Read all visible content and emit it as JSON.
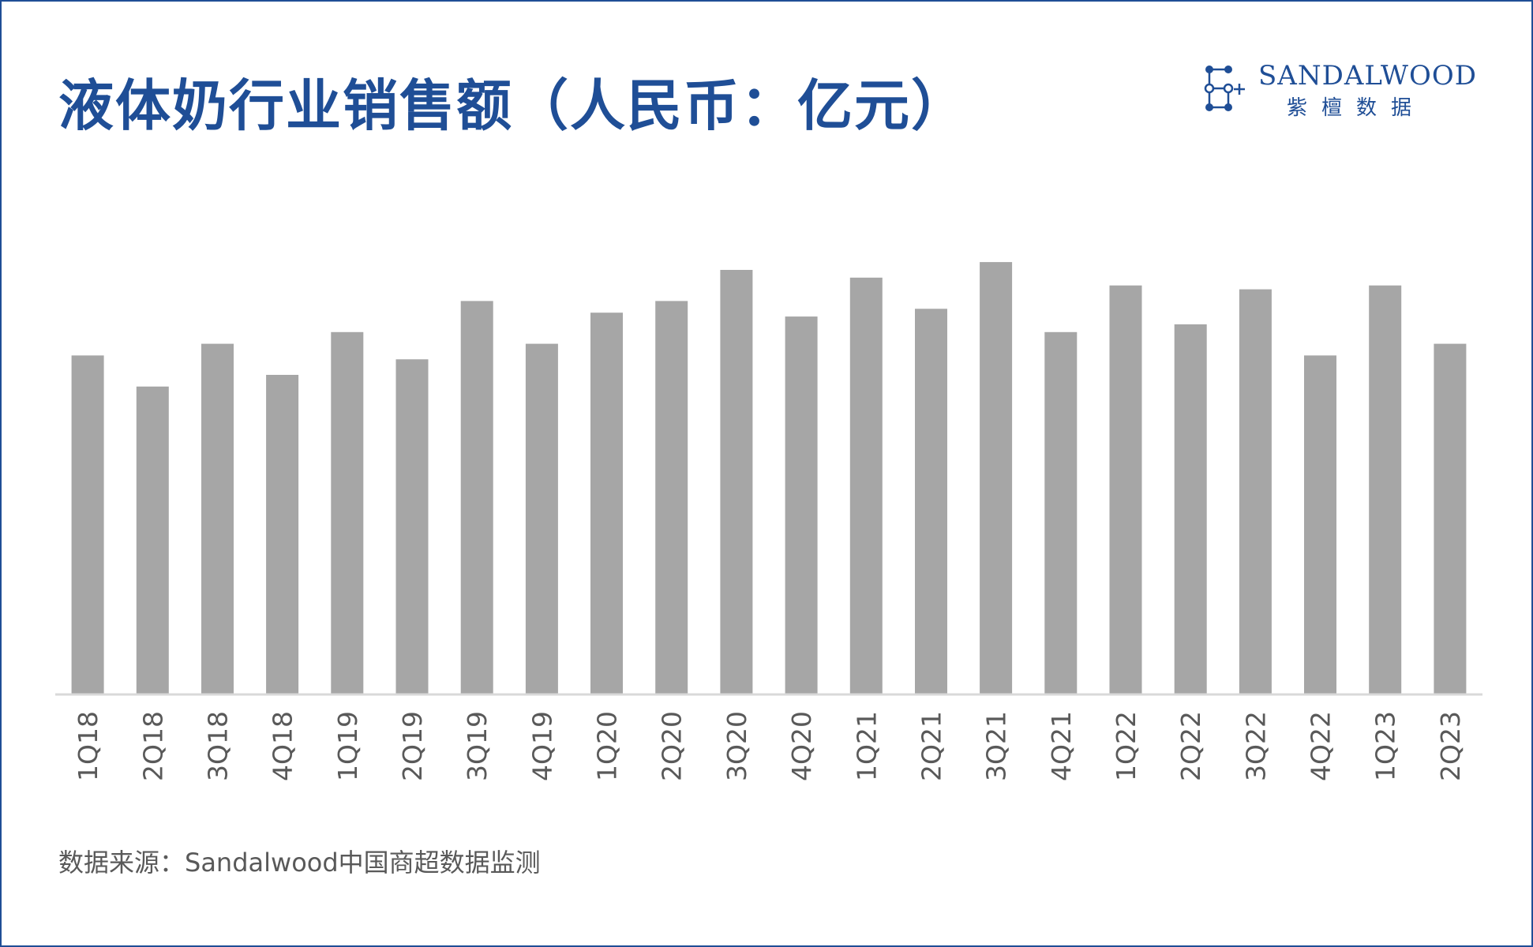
{
  "header": {
    "title": "液体奶行业销售额（人民币：亿元）"
  },
  "logo": {
    "name_en": "SANDALWOOD",
    "name_cn": "紫檀数据",
    "color": "#1f4e96"
  },
  "footer": {
    "source": "数据来源：Sandalwood中国商超数据监测"
  },
  "colors": {
    "bar": "#a6a6a6",
    "axis": "#d9d9d9",
    "title": "#1f4e96",
    "tick_label": "#595959"
  },
  "chart_data": {
    "type": "bar",
    "title": "液体奶行业销售额（人民币：亿元）",
    "xlabel": "",
    "ylabel": "",
    "grid": false,
    "legend": "none",
    "categories": [
      "1Q18",
      "2Q18",
      "3Q18",
      "4Q18",
      "1Q19",
      "2Q19",
      "3Q19",
      "4Q19",
      "1Q20",
      "2Q20",
      "3Q20",
      "4Q20",
      "1Q21",
      "2Q21",
      "3Q21",
      "4Q21",
      "1Q22",
      "2Q22",
      "3Q22",
      "4Q22",
      "1Q23",
      "2Q23"
    ],
    "values": [
      87,
      79,
      90,
      82,
      93,
      86,
      101,
      90,
      98,
      101,
      109,
      97,
      107,
      99,
      111,
      93,
      105,
      95,
      104,
      87,
      105,
      90
    ],
    "ylim": [
      0,
      150
    ]
  }
}
